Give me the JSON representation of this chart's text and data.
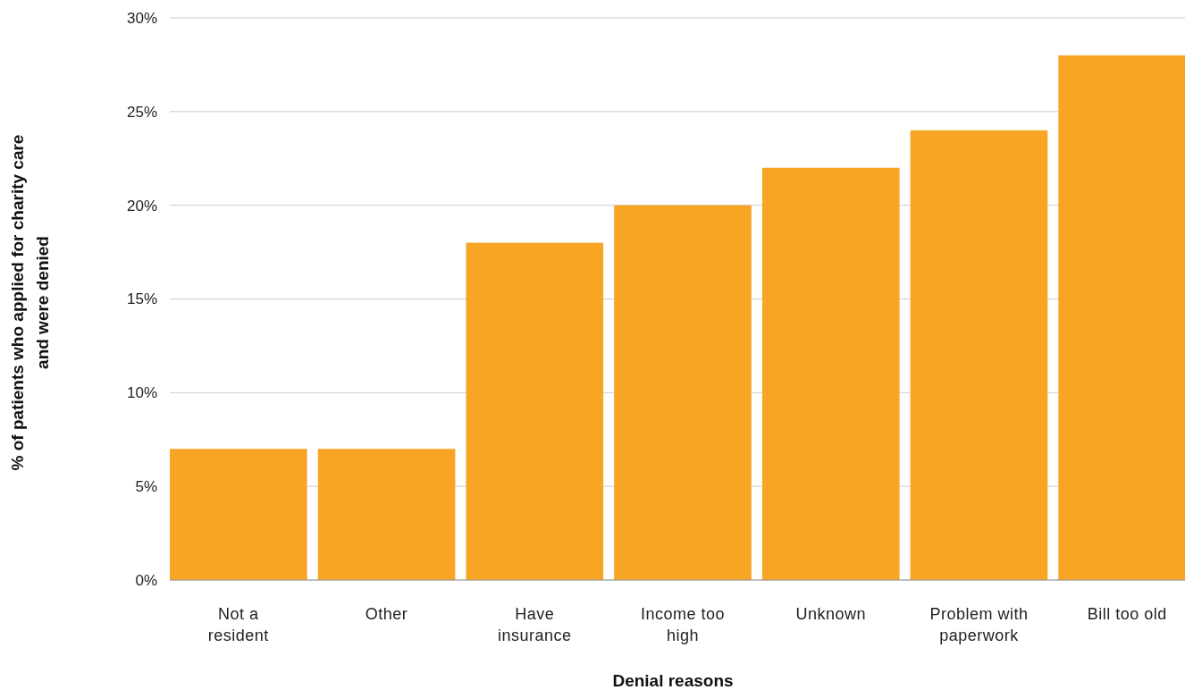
{
  "chart_data": {
    "type": "bar",
    "xlabel": "Denial reasons",
    "ylabel": "% of patients who applied for charity care and were denied",
    "categories": [
      "Not a resident",
      "Other",
      "Have insurance",
      "Income too high",
      "Unknown",
      "Problem with paperwork",
      "Bill too old"
    ],
    "values": [
      7,
      7,
      18,
      20,
      22,
      24,
      28
    ],
    "color": "#f8a526",
    "ylim": [
      0,
      30
    ],
    "yticks": [
      {
        "value": 0,
        "label": "0%"
      },
      {
        "value": 5,
        "label": "5%"
      },
      {
        "value": 10,
        "label": "10%"
      },
      {
        "value": 15,
        "label": "15%"
      },
      {
        "value": 20,
        "label": "20%"
      },
      {
        "value": 25,
        "label": "25%"
      },
      {
        "value": 30,
        "label": "30%"
      }
    ],
    "grid": "y"
  }
}
